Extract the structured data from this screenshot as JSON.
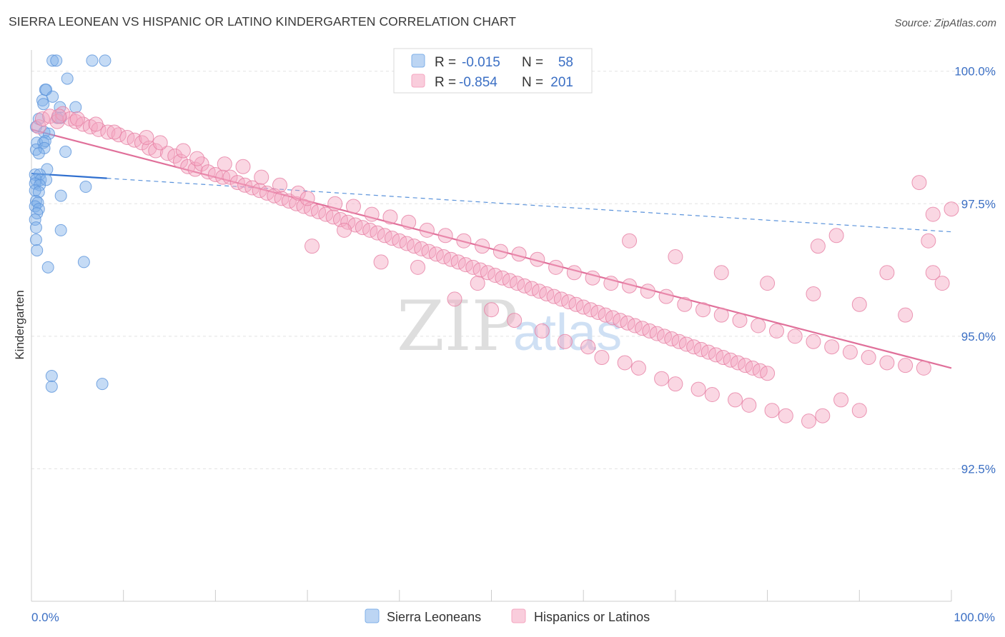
{
  "header": {
    "title": "SIERRA LEONEAN VS HISPANIC OR LATINO KINDERGARTEN CORRELATION CHART",
    "source": "Source: ZipAtlas.com"
  },
  "watermark": {
    "zip": "ZIP",
    "atlas": "atlas"
  },
  "legend": {
    "rows": [
      {
        "r_label": "R =",
        "r_value": "-0.015",
        "n_label": "N =",
        "n_value": "58",
        "color": "#7fb0e8"
      },
      {
        "r_label": "R =",
        "r_value": "-0.854",
        "n_label": "N =",
        "n_value": "201",
        "color": "#f5a6c0"
      }
    ]
  },
  "bottom_legend": [
    {
      "label": "Sierra Leoneans",
      "color": "#7fb0e8"
    },
    {
      "label": "Hispanics or Latinos",
      "color": "#f5a6c0"
    }
  ],
  "chart_data": {
    "type": "scatter",
    "title": "SIERRA LEONEAN VS HISPANIC OR LATINO KINDERGARTEN CORRELATION CHART",
    "xlabel": "",
    "ylabel": "Kindergarten",
    "x_tick_labels": [
      "0.0%",
      "100.0%"
    ],
    "y_tick_labels": [
      "100.0%",
      "97.5%",
      "95.0%",
      "92.5%"
    ],
    "y_ticks": [
      100.0,
      97.5,
      95.0,
      92.5
    ],
    "xlim": [
      0,
      100
    ],
    "ylim": [
      90.0,
      100.4
    ],
    "grid": true,
    "series": [
      {
        "name": "Sierra Leoneans",
        "color": "#7fb0e8",
        "stroke": "#5b93db",
        "trend": {
          "x_solid": [
            0,
            8.2
          ],
          "x_dashed": [
            8.2,
            100
          ],
          "y_at_0": 98.07,
          "y_at_100": 96.97
        },
        "points": [
          [
            2.3,
            100.2
          ],
          [
            2.7,
            100.2
          ],
          [
            6.6,
            100.2
          ],
          [
            8.0,
            100.2
          ],
          [
            1.5,
            99.65
          ],
          [
            1.6,
            99.65
          ],
          [
            3.9,
            99.86
          ],
          [
            1.2,
            99.45
          ],
          [
            2.3,
            99.52
          ],
          [
            1.3,
            99.38
          ],
          [
            3.1,
            99.32
          ],
          [
            4.8,
            99.32
          ],
          [
            0.8,
            99.1
          ],
          [
            2.8,
            99.12
          ],
          [
            3.2,
            99.12
          ],
          [
            0.5,
            98.95
          ],
          [
            1.4,
            98.85
          ],
          [
            1.9,
            98.82
          ],
          [
            0.6,
            98.65
          ],
          [
            1.3,
            98.65
          ],
          [
            1.5,
            98.68
          ],
          [
            0.5,
            98.52
          ],
          [
            1.4,
            98.55
          ],
          [
            0.8,
            98.45
          ],
          [
            3.7,
            98.48
          ],
          [
            1.7,
            98.15
          ],
          [
            0.4,
            98.05
          ],
          [
            0.9,
            98.05
          ],
          [
            0.5,
            97.95
          ],
          [
            1.0,
            97.95
          ],
          [
            1.6,
            97.95
          ],
          [
            0.4,
            97.88
          ],
          [
            0.9,
            97.85
          ],
          [
            5.9,
            97.82
          ],
          [
            0.4,
            97.75
          ],
          [
            0.8,
            97.72
          ],
          [
            3.2,
            97.65
          ],
          [
            0.5,
            97.55
          ],
          [
            0.7,
            97.52
          ],
          [
            0.4,
            97.45
          ],
          [
            0.8,
            97.4
          ],
          [
            0.6,
            97.32
          ],
          [
            0.4,
            97.2
          ],
          [
            0.5,
            97.05
          ],
          [
            3.2,
            97.0
          ],
          [
            0.5,
            96.82
          ],
          [
            0.6,
            96.62
          ],
          [
            5.7,
            96.4
          ],
          [
            1.8,
            96.3
          ],
          [
            2.2,
            94.25
          ],
          [
            2.2,
            94.05
          ],
          [
            7.7,
            94.1
          ]
        ]
      },
      {
        "name": "Hispanics or Latinos",
        "color": "#f5a6c0",
        "stroke": "#e67ea3",
        "trend": {
          "x_solid": [
            0,
            100
          ],
          "y_at_0": 98.9,
          "y_at_100": 94.4
        },
        "points": [
          [
            0.8,
            98.95
          ],
          [
            1.2,
            99.1
          ],
          [
            2.0,
            99.15
          ],
          [
            2.8,
            99.05
          ],
          [
            3.4,
            99.2
          ],
          [
            4.2,
            99.1
          ],
          [
            4.8,
            99.05
          ],
          [
            5.6,
            99.0
          ],
          [
            6.4,
            98.95
          ],
          [
            7.3,
            98.9
          ],
          [
            8.3,
            98.85
          ],
          [
            9.5,
            98.8
          ],
          [
            10.4,
            98.75
          ],
          [
            11.2,
            98.7
          ],
          [
            12.0,
            98.65
          ],
          [
            12.8,
            98.55
          ],
          [
            13.5,
            98.5
          ],
          [
            14.8,
            98.45
          ],
          [
            15.6,
            98.4
          ],
          [
            16.2,
            98.3
          ],
          [
            17.0,
            98.2
          ],
          [
            17.8,
            98.15
          ],
          [
            18.5,
            98.25
          ],
          [
            19.2,
            98.1
          ],
          [
            20.0,
            98.05
          ],
          [
            20.8,
            98.0
          ],
          [
            21.6,
            98.0
          ],
          [
            22.4,
            97.9
          ],
          [
            23.2,
            97.85
          ],
          [
            24.0,
            97.8
          ],
          [
            24.8,
            97.75
          ],
          [
            25.6,
            97.7
          ],
          [
            26.4,
            97.65
          ],
          [
            27.2,
            97.6
          ],
          [
            28.0,
            97.55
          ],
          [
            28.8,
            97.5
          ],
          [
            29.6,
            97.45
          ],
          [
            30.4,
            97.4
          ],
          [
            31.2,
            97.35
          ],
          [
            32.0,
            97.3
          ],
          [
            32.8,
            97.25
          ],
          [
            33.6,
            97.2
          ],
          [
            34.4,
            97.15
          ],
          [
            35.2,
            97.1
          ],
          [
            36.0,
            97.05
          ],
          [
            36.8,
            97.0
          ],
          [
            37.6,
            96.95
          ],
          [
            38.4,
            96.9
          ],
          [
            39.2,
            96.85
          ],
          [
            40.0,
            96.8
          ],
          [
            40.8,
            96.75
          ],
          [
            41.6,
            96.7
          ],
          [
            42.4,
            96.65
          ],
          [
            43.2,
            96.6
          ],
          [
            44.0,
            96.55
          ],
          [
            44.8,
            96.5
          ],
          [
            45.6,
            96.45
          ],
          [
            46.4,
            96.4
          ],
          [
            47.2,
            96.35
          ],
          [
            48.0,
            96.3
          ],
          [
            48.8,
            96.25
          ],
          [
            49.6,
            96.2
          ],
          [
            50.4,
            96.15
          ],
          [
            51.2,
            96.1
          ],
          [
            52.0,
            96.05
          ],
          [
            52.8,
            96.0
          ],
          [
            53.6,
            95.95
          ],
          [
            54.4,
            95.9
          ],
          [
            55.2,
            95.85
          ],
          [
            56.0,
            95.8
          ],
          [
            56.8,
            95.75
          ],
          [
            57.6,
            95.7
          ],
          [
            58.4,
            95.65
          ],
          [
            59.2,
            95.6
          ],
          [
            60.0,
            95.55
          ],
          [
            60.8,
            95.5
          ],
          [
            61.6,
            95.45
          ],
          [
            62.4,
            95.4
          ],
          [
            63.2,
            95.35
          ],
          [
            64.0,
            95.3
          ],
          [
            64.8,
            95.25
          ],
          [
            65.6,
            95.2
          ],
          [
            66.4,
            95.15
          ],
          [
            67.2,
            95.1
          ],
          [
            68.0,
            95.05
          ],
          [
            68.8,
            95.0
          ],
          [
            69.6,
            94.95
          ],
          [
            70.4,
            94.9
          ],
          [
            71.2,
            94.85
          ],
          [
            72.0,
            94.8
          ],
          [
            72.8,
            94.75
          ],
          [
            73.6,
            94.7
          ],
          [
            74.4,
            94.65
          ],
          [
            75.2,
            94.6
          ],
          [
            76.0,
            94.55
          ],
          [
            76.8,
            94.5
          ],
          [
            77.6,
            94.45
          ],
          [
            78.4,
            94.4
          ],
          [
            79.2,
            94.35
          ],
          [
            80.0,
            94.3
          ],
          [
            3.0,
            99.15
          ],
          [
            5.0,
            99.1
          ],
          [
            7.0,
            99.0
          ],
          [
            9.0,
            98.85
          ],
          [
            12.5,
            98.75
          ],
          [
            14.0,
            98.65
          ],
          [
            16.5,
            98.5
          ],
          [
            18.0,
            98.35
          ],
          [
            21.0,
            98.25
          ],
          [
            23.0,
            98.2
          ],
          [
            25.0,
            98.0
          ],
          [
            27.0,
            97.85
          ],
          [
            29.0,
            97.7
          ],
          [
            30.0,
            97.6
          ],
          [
            33.0,
            97.5
          ],
          [
            35.0,
            97.45
          ],
          [
            37.0,
            97.3
          ],
          [
            39.0,
            97.25
          ],
          [
            41.0,
            97.15
          ],
          [
            43.0,
            97.0
          ],
          [
            45.0,
            96.9
          ],
          [
            47.0,
            96.8
          ],
          [
            49.0,
            96.7
          ],
          [
            51.0,
            96.6
          ],
          [
            53.0,
            96.55
          ],
          [
            55.0,
            96.45
          ],
          [
            57.0,
            96.3
          ],
          [
            59.0,
            96.2
          ],
          [
            61.0,
            96.1
          ],
          [
            63.0,
            96.0
          ],
          [
            65.0,
            95.95
          ],
          [
            67.0,
            95.85
          ],
          [
            69.0,
            95.75
          ],
          [
            71.0,
            95.6
          ],
          [
            73.0,
            95.5
          ],
          [
            75.0,
            95.4
          ],
          [
            77.0,
            95.3
          ],
          [
            79.0,
            95.2
          ],
          [
            81.0,
            95.1
          ],
          [
            83.0,
            95.0
          ],
          [
            85.0,
            94.9
          ],
          [
            87.0,
            94.8
          ],
          [
            89.0,
            94.7
          ],
          [
            91.0,
            94.6
          ],
          [
            93.0,
            94.5
          ],
          [
            95.0,
            94.45
          ],
          [
            97.0,
            94.4
          ],
          [
            30.5,
            96.7
          ],
          [
            34.0,
            97.0
          ],
          [
            38.0,
            96.4
          ],
          [
            42.0,
            96.3
          ],
          [
            46.0,
            95.7
          ],
          [
            48.5,
            96.0
          ],
          [
            50.0,
            95.5
          ],
          [
            52.5,
            95.3
          ],
          [
            55.5,
            95.1
          ],
          [
            58.0,
            94.9
          ],
          [
            60.5,
            94.8
          ],
          [
            62.0,
            94.6
          ],
          [
            64.5,
            94.5
          ],
          [
            66.0,
            94.4
          ],
          [
            68.5,
            94.2
          ],
          [
            70.0,
            94.1
          ],
          [
            72.5,
            94.0
          ],
          [
            74.0,
            93.9
          ],
          [
            76.5,
            93.8
          ],
          [
            78.0,
            93.7
          ],
          [
            80.5,
            93.6
          ],
          [
            82.0,
            93.5
          ],
          [
            84.5,
            93.4
          ],
          [
            86.0,
            93.5
          ],
          [
            88.0,
            93.8
          ],
          [
            90.0,
            93.6
          ],
          [
            65.0,
            96.8
          ],
          [
            70.0,
            96.5
          ],
          [
            75.0,
            96.2
          ],
          [
            80.0,
            96.0
          ],
          [
            85.0,
            95.8
          ],
          [
            90.0,
            95.6
          ],
          [
            95.0,
            95.4
          ],
          [
            98.0,
            96.2
          ],
          [
            97.5,
            96.8
          ],
          [
            96.5,
            97.9
          ],
          [
            98.0,
            97.3
          ],
          [
            100.0,
            97.4
          ],
          [
            87.5,
            96.9
          ],
          [
            85.5,
            96.7
          ],
          [
            93.0,
            96.2
          ],
          [
            99.0,
            96.0
          ]
        ]
      }
    ]
  }
}
